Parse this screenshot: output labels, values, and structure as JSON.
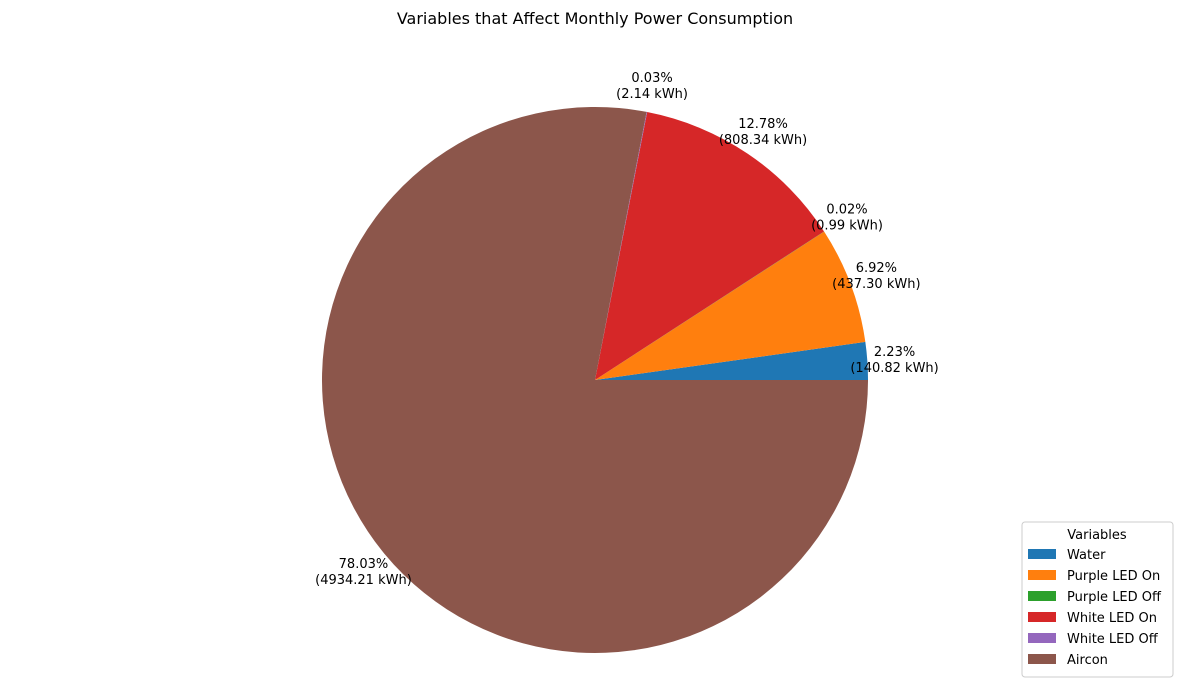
{
  "chart_data": {
    "type": "pie",
    "title": "Variables that Affect Monthly Power Consumption",
    "unit": "kWh",
    "slices": [
      {
        "label": "Water",
        "value": 140.82,
        "percent_text": "2.23%",
        "value_text": "(140.82 kWh)",
        "color": "#1f77b4"
      },
      {
        "label": "Purple LED On",
        "value": 437.3,
        "percent_text": "6.92%",
        "value_text": "(437.30 kWh)",
        "color": "#ff7f0e"
      },
      {
        "label": "Purple LED Off",
        "value": 0.99,
        "percent_text": "0.02%",
        "value_text": "(0.99 kWh)",
        "color": "#2ca02c"
      },
      {
        "label": "White LED On",
        "value": 808.34,
        "percent_text": "12.78%",
        "value_text": "(808.34 kWh)",
        "color": "#d62728"
      },
      {
        "label": "White LED Off",
        "value": 2.14,
        "percent_text": "0.03%",
        "value_text": "(2.14 kWh)",
        "color": "#9467bd"
      },
      {
        "label": "Aircon",
        "value": 4934.21,
        "percent_text": "78.03%",
        "value_text": "(4934.21 kWh)",
        "color": "#8c564b"
      }
    ],
    "legend": {
      "title": "Variables",
      "placement": "lower-right"
    }
  }
}
